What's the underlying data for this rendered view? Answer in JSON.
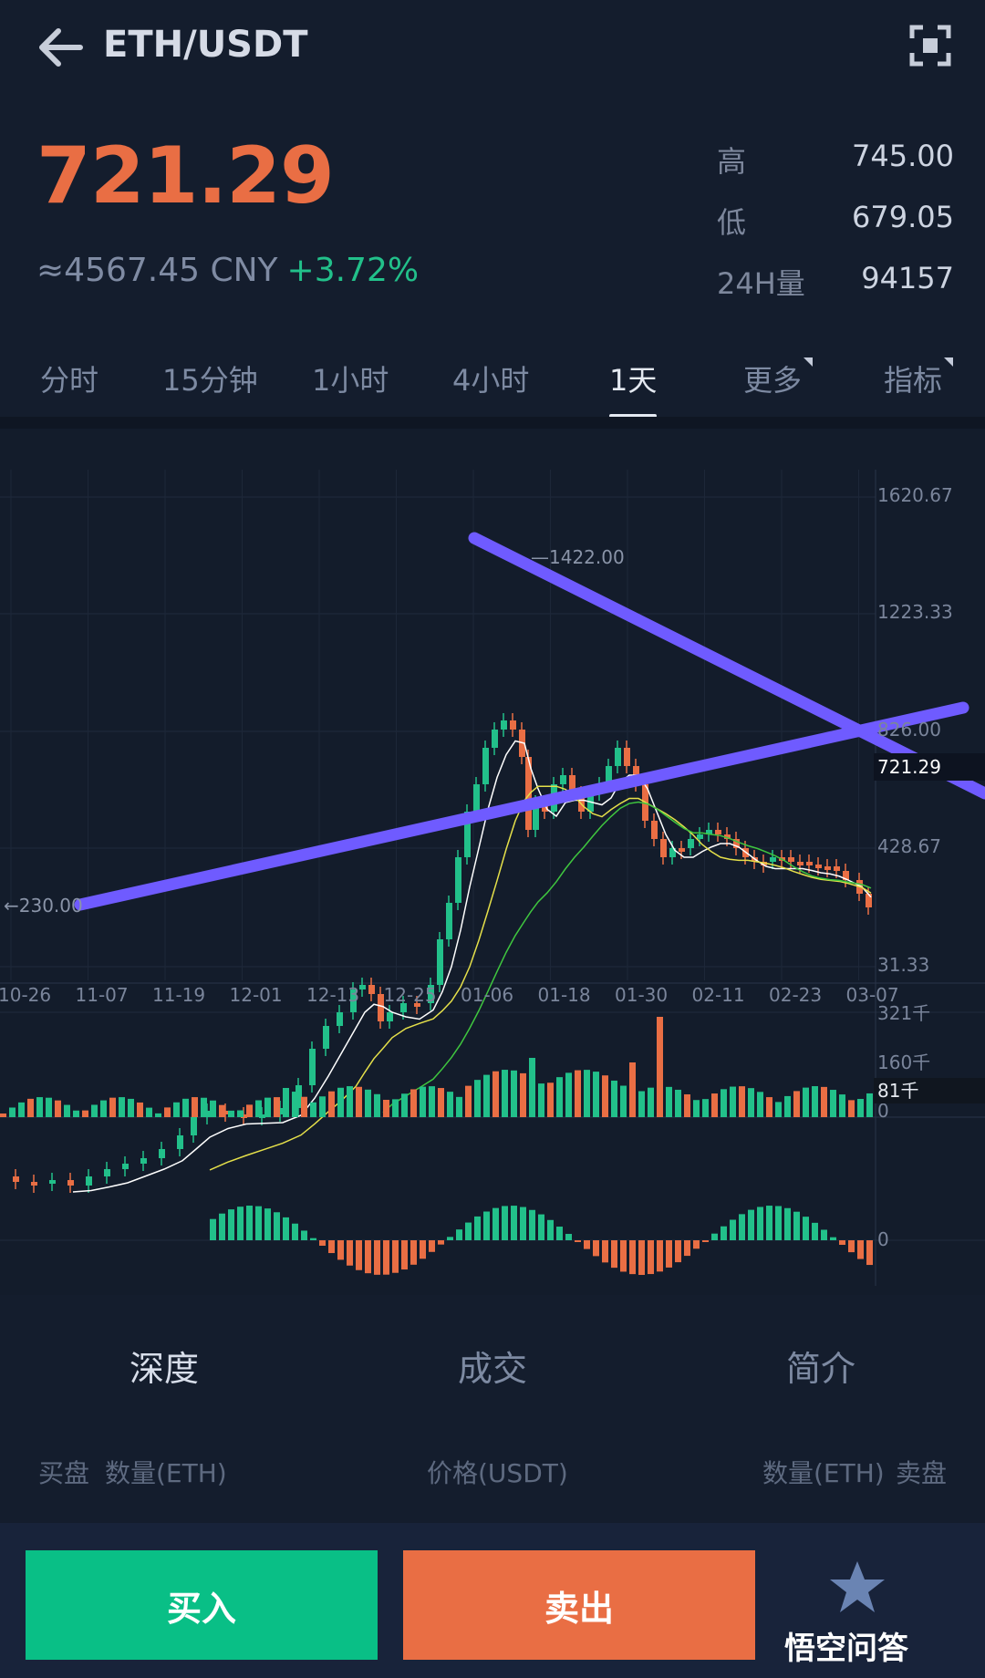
{
  "header": {
    "pair": "ETH/USDT"
  },
  "ticker": {
    "price": "721.29",
    "cny": "≈4567.45 CNY",
    "change": "+3.72%",
    "stats": [
      {
        "k": "高",
        "v": "745.00"
      },
      {
        "k": "低",
        "v": "679.05"
      },
      {
        "k": "24H量",
        "v": "94157"
      }
    ]
  },
  "tabs": [
    "分时",
    "15分钟",
    "1小时",
    "4小时",
    "1天",
    "更多",
    "指标"
  ],
  "active_tab": "1天",
  "chart": {
    "price_ticks": [
      "1620.67",
      "1223.33",
      "826.00",
      "428.67",
      "31.33"
    ],
    "current_price_label": "721.29",
    "high_label": "1422.00",
    "low_label": "230.00",
    "date_ticks": [
      "10-26",
      "11-07",
      "11-19",
      "12-01",
      "12-13",
      "12-25",
      "01-06",
      "01-18",
      "01-30",
      "02-11",
      "02-23",
      "03-07"
    ],
    "volume_ticks": [
      "321千",
      "160千",
      "0"
    ],
    "volume_current": "81千",
    "macd_zero": "0",
    "colors": {
      "up": "#22c08a",
      "down": "#e96e44",
      "trend": "#6f5bff",
      "ma1": "#ffffff",
      "ma2": "#e5e04a",
      "ma3": "#3fc63f"
    }
  },
  "section_tabs": [
    "深度",
    "成交",
    "简介"
  ],
  "orderbook": {
    "bid": "买盘",
    "bid_qty": "数量(ETH)",
    "price": "价格(USDT)",
    "ask_qty": "数量(ETH)",
    "ask": "卖盘"
  },
  "actions": {
    "buy": "买入",
    "sell": "卖出"
  },
  "watermark": "悟空问答"
}
